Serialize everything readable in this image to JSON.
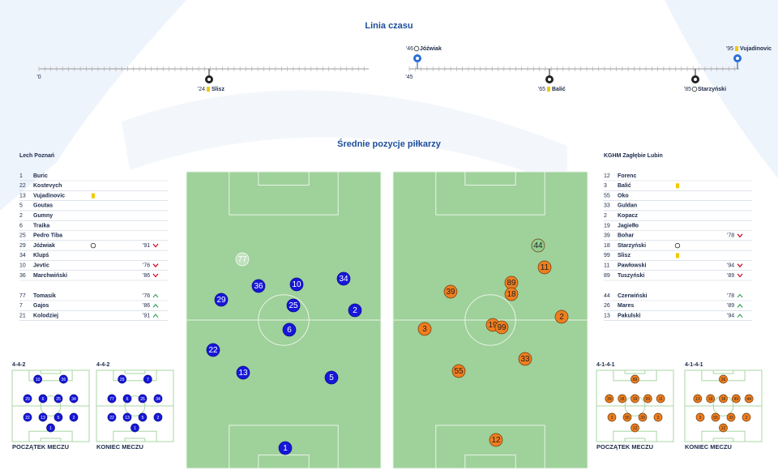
{
  "timeline": {
    "title": "Linia czasu",
    "halves": [
      {
        "start": "'0",
        "events": [
          {
            "minute": "'24",
            "player": "Slisz",
            "event": "yellow_card"
          }
        ]
      },
      {
        "start": "'45",
        "events": [
          {
            "minute": "'46",
            "player": "Jóźwiak",
            "event": "goal"
          },
          {
            "minute": "'65",
            "player": "Balić",
            "event": "yellow_card"
          },
          {
            "minute": "'85",
            "player": "Starzyński",
            "event": "goal"
          },
          {
            "minute": "'95",
            "player": "Vujadinovic",
            "event": "yellow_card"
          }
        ]
      }
    ]
  },
  "positions": {
    "title": "Średnie pozycje piłkarzy"
  },
  "home": {
    "name": "Lech Poznań",
    "starters": [
      {
        "number": 1,
        "name": "Buric"
      },
      {
        "number": 22,
        "name": "Kostevych"
      },
      {
        "number": 13,
        "name": "Vujadinovic",
        "event": "yellow_card"
      },
      {
        "number": 5,
        "name": "Goutas"
      },
      {
        "number": 2,
        "name": "Gumny"
      },
      {
        "number": 6,
        "name": "Traika"
      },
      {
        "number": 25,
        "name": "Pedro Tiba"
      },
      {
        "number": 29,
        "name": "Jóźwiak",
        "event": "goal",
        "sub": "'91"
      },
      {
        "number": 34,
        "name": "Klupś"
      },
      {
        "number": 10,
        "name": "Jevtic",
        "sub": "'76"
      },
      {
        "number": 36,
        "name": "Marchwiński",
        "sub": "'86"
      }
    ],
    "subs": [
      {
        "number": 77,
        "name": "Tomasik",
        "sub": "'76"
      },
      {
        "number": 7,
        "name": "Gajos",
        "sub": "'86"
      },
      {
        "number": 21,
        "name": "Kolodziej",
        "sub": "'91"
      }
    ],
    "pitch": [
      77,
      36,
      10,
      34,
      29,
      25,
      2,
      6,
      22,
      13,
      5,
      1
    ],
    "formations": [
      {
        "label": "4-4-2",
        "caption": "POCZĄTEK MECZU",
        "rows": [
          [
            10,
            36
          ],
          [
            29,
            6,
            25,
            34
          ],
          [
            22,
            13,
            5,
            2
          ],
          [
            1
          ]
        ]
      },
      {
        "label": "4-4-2",
        "caption": "KONIEC MECZU",
        "rows": [
          [
            29,
            7
          ],
          [
            77,
            6,
            25,
            34
          ],
          [
            22,
            13,
            5,
            2
          ],
          [
            1
          ]
        ]
      }
    ]
  },
  "away": {
    "name": "KGHM Zagłębie Lubin",
    "starters": [
      {
        "number": 12,
        "name": "Forenc"
      },
      {
        "number": 3,
        "name": "Balić",
        "event": "yellow_card"
      },
      {
        "number": 55,
        "name": "Oko"
      },
      {
        "number": 33,
        "name": "Guldan"
      },
      {
        "number": 2,
        "name": "Kopacz"
      },
      {
        "number": 19,
        "name": "Jagiełło"
      },
      {
        "number": 39,
        "name": "Bohar",
        "sub": "'78"
      },
      {
        "number": 18,
        "name": "Starzyński",
        "event": "goal"
      },
      {
        "number": 99,
        "name": "Slisz",
        "event": "yellow_card"
      },
      {
        "number": 11,
        "name": "Pawłowski",
        "sub": "'94"
      },
      {
        "number": 89,
        "name": "Tuszyński",
        "sub": "'89"
      }
    ],
    "subs": [
      {
        "number": 44,
        "name": "Czerwiński",
        "sub": "'78"
      },
      {
        "number": 26,
        "name": "Mares",
        "sub": "'89"
      },
      {
        "number": 13,
        "name": "Pakulski",
        "sub": "'94"
      }
    ],
    "pitch": [
      44,
      11,
      89,
      18,
      39,
      2,
      3,
      19,
      99,
      33,
      55,
      12
    ],
    "formations": [
      {
        "label": "4-1-4-1",
        "caption": "POCZĄTEK MECZU",
        "rows": [
          [
            89
          ],
          [
            39,
            18,
            19,
            99,
            11
          ],
          [
            3,
            55,
            33,
            2
          ],
          [
            12
          ]
        ]
      },
      {
        "label": "4-1-4-1",
        "caption": "KONIEC MECZU",
        "rows": [
          [
            26
          ],
          [
            13,
            19,
            18,
            99,
            44
          ],
          [
            3,
            55,
            33,
            2
          ],
          [
            12
          ]
        ]
      }
    ]
  }
}
